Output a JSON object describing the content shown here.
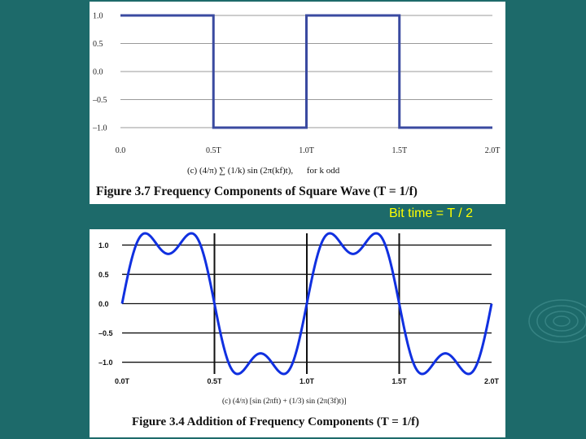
{
  "annotation": "Bit time = T / 2",
  "chart_data": [
    {
      "type": "line",
      "x_tick_labels": [
        "0.0",
        "0.5T",
        "1.0T",
        "1.5T",
        "2.0T"
      ],
      "y_tick_labels": [
        "1.0",
        "0.5",
        "0.0",
        "–0.5",
        "–1.0"
      ],
      "y_ticks": [
        1.0,
        0.5,
        0.0,
        -0.5,
        -1.0
      ],
      "xlim": [
        0,
        2
      ],
      "ylim": [
        -1,
        1
      ],
      "grid": true,
      "series": [
        {
          "x": [
            0,
            0.5,
            0.5,
            1.0,
            1.0,
            1.5,
            1.5,
            2.0
          ],
          "y": [
            1,
            1,
            -1,
            -1,
            1,
            1,
            -1,
            -1
          ]
        }
      ],
      "formula": "(c) (4/π) ∑ (1/k) sin (2π(kf)t),",
      "formula_note": "for k odd",
      "title": "Figure 3.7 Frequency Components of Square Wave (T = 1/f)",
      "line_color": "#3a4aa0"
    },
    {
      "type": "line",
      "x_tick_labels": [
        "0.0T",
        "0.5T",
        "1.0T",
        "1.5T",
        "2.0T"
      ],
      "y_tick_labels": [
        "1.0",
        "0.5",
        "0.0",
        "–0.5",
        "–1.0"
      ],
      "y_ticks": [
        1.0,
        0.5,
        0.0,
        -0.5,
        -1.0
      ],
      "xlim": [
        0,
        2
      ],
      "ylim": [
        -1.2,
        1.2
      ],
      "grid": true,
      "function": "(4/pi)*(sin(2*pi*f*t) + (1/3)*sin(2*pi*3f*t))",
      "formula": "(c)  (4/π) [sin (2πft) + (1/3) sin (2π(3f)t)]",
      "title": "Figure 3.4  Addition of Frequency Components (T = 1/f)",
      "line_color": "#1030e0"
    }
  ]
}
